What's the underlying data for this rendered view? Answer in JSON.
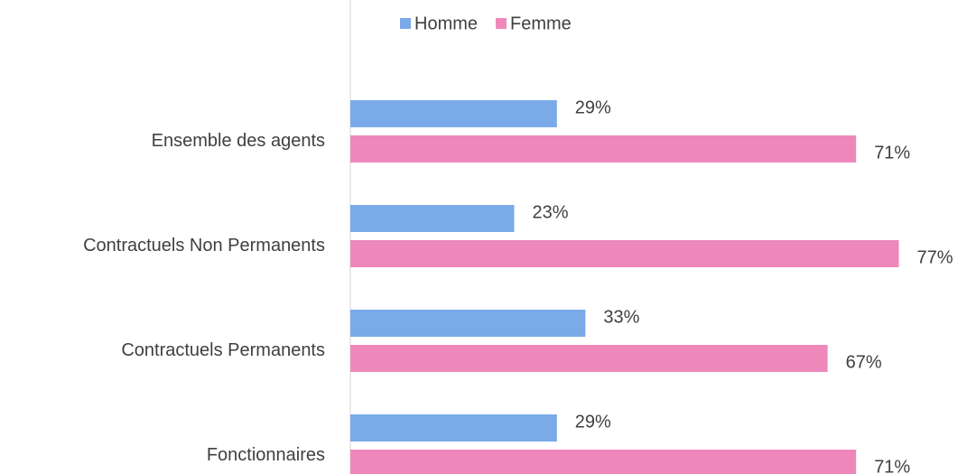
{
  "chart_data": {
    "type": "hbar",
    "categories": [
      "Ensemble des agents",
      "Contractuels Non Permanents",
      "Contractuels Permanents",
      "Fonctionnaires"
    ],
    "series": [
      {
        "name": "Homme",
        "color": "#7aaae8",
        "values": [
          29,
          23,
          33,
          29
        ],
        "value_labels": [
          "29%",
          "23%",
          "33%",
          "29%"
        ]
      },
      {
        "name": "Femme",
        "color": "#ee88bb",
        "values": [
          71,
          77,
          67,
          71
        ],
        "value_labels": [
          "71%",
          "77%",
          "67%",
          "71%"
        ]
      }
    ],
    "legend": "top"
  }
}
